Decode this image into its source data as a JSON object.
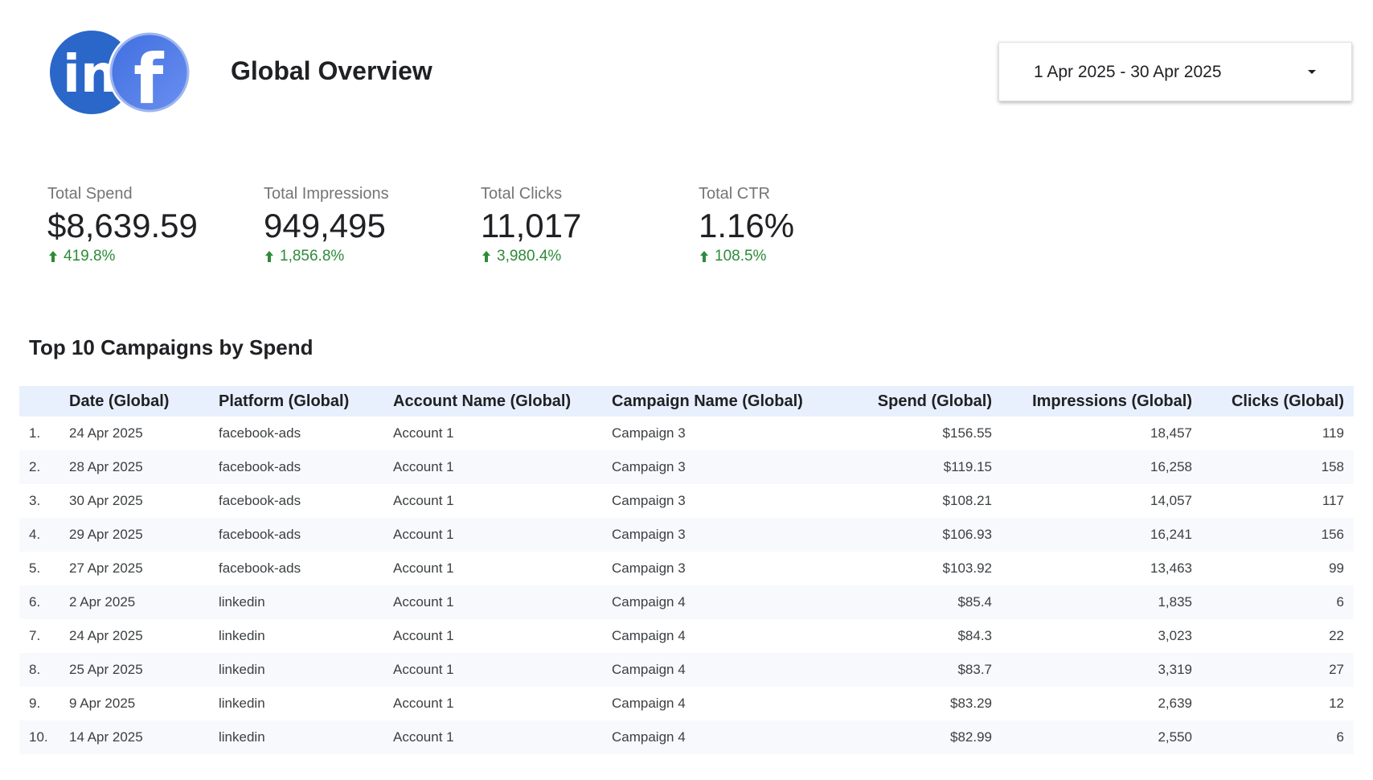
{
  "header": {
    "title": "Global Overview",
    "logo": {
      "linkedin_text": "in",
      "facebook_text": "f",
      "linkedin_color": "#2a67c9",
      "facebook_color": "#4a7be6"
    },
    "date_range": {
      "label": "1 Apr 2025 - 30 Apr 2025",
      "caret_icon": "caret-down-icon"
    }
  },
  "scorecards": [
    {
      "label": "Total Spend",
      "value": "$8,639.59",
      "delta": "419.8%",
      "delta_icon": "up-arrow-icon"
    },
    {
      "label": "Total Impressions",
      "value": "949,495",
      "delta": "1,856.8%",
      "delta_icon": "up-arrow-icon"
    },
    {
      "label": "Total Clicks",
      "value": "11,017",
      "delta": "3,980.4%",
      "delta_icon": "up-arrow-icon"
    },
    {
      "label": "Total CTR",
      "value": "1.16%",
      "delta": "108.5%",
      "delta_icon": "up-arrow-icon"
    }
  ],
  "colors": {
    "positive_delta": "#2e8b3a",
    "table_header_bg": "#e8f0fe",
    "table_stripe_bg": "#f7f9fc"
  },
  "table": {
    "title": "Top 10 Campaigns by Spend",
    "columns": [
      "",
      "Date (Global)",
      "Platform (Global)",
      "Account Name (Global)",
      "Campaign Name (Global)",
      "Spend (Global)",
      "Impressions (Global)",
      "Clicks (Global)"
    ],
    "rows": [
      [
        "1.",
        "24 Apr 2025",
        "facebook-ads",
        "Account 1",
        "Campaign 3",
        "$156.55",
        "18,457",
        "119"
      ],
      [
        "2.",
        "28 Apr 2025",
        "facebook-ads",
        "Account 1",
        "Campaign 3",
        "$119.15",
        "16,258",
        "158"
      ],
      [
        "3.",
        "30 Apr 2025",
        "facebook-ads",
        "Account 1",
        "Campaign 3",
        "$108.21",
        "14,057",
        "117"
      ],
      [
        "4.",
        "29 Apr 2025",
        "facebook-ads",
        "Account 1",
        "Campaign 3",
        "$106.93",
        "16,241",
        "156"
      ],
      [
        "5.",
        "27 Apr 2025",
        "facebook-ads",
        "Account 1",
        "Campaign 3",
        "$103.92",
        "13,463",
        "99"
      ],
      [
        "6.",
        "2 Apr 2025",
        "linkedin",
        "Account 1",
        "Campaign 4",
        "$85.4",
        "1,835",
        "6"
      ],
      [
        "7.",
        "24 Apr 2025",
        "linkedin",
        "Account 1",
        "Campaign 4",
        "$84.3",
        "3,023",
        "22"
      ],
      [
        "8.",
        "25 Apr 2025",
        "linkedin",
        "Account 1",
        "Campaign 4",
        "$83.7",
        "3,319",
        "27"
      ],
      [
        "9.",
        "9 Apr 2025",
        "linkedin",
        "Account 1",
        "Campaign 4",
        "$83.29",
        "2,639",
        "12"
      ],
      [
        "10.",
        "14 Apr 2025",
        "linkedin",
        "Account 1",
        "Campaign 4",
        "$82.99",
        "2,550",
        "6"
      ]
    ]
  }
}
